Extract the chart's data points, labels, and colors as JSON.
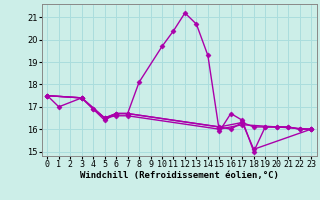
{
  "background_color": "#cceee8",
  "grid_color": "#aadddd",
  "line_color": "#aa00aa",
  "marker": "D",
  "markersize": 2.5,
  "linewidth": 1.0,
  "xlim": [
    -0.5,
    23.5
  ],
  "ylim": [
    14.8,
    21.6
  ],
  "yticks": [
    15,
    16,
    17,
    18,
    19,
    20,
    21
  ],
  "xlabel": "Windchill (Refroidissement éolien,°C)",
  "xlabel_fontsize": 6.5,
  "tick_fontsize": 6.0,
  "series": [
    [
      17.5,
      17.0,
      null,
      17.4,
      16.9,
      16.4,
      16.7,
      16.7,
      18.1,
      null,
      19.7,
      20.4,
      21.2,
      20.7,
      19.3,
      15.9,
      16.7,
      16.4,
      15.0,
      16.1,
      16.1,
      16.1,
      16.0,
      16.0
    ],
    [
      17.5,
      null,
      null,
      17.4,
      16.9,
      16.5,
      16.7,
      16.7,
      null,
      null,
      null,
      null,
      null,
      null,
      null,
      16.1,
      16.0,
      16.3,
      16.1,
      16.1,
      16.1,
      16.1,
      16.0,
      16.0
    ],
    [
      17.5,
      null,
      null,
      17.4,
      null,
      16.5,
      16.7,
      16.7,
      null,
      null,
      null,
      null,
      null,
      null,
      null,
      16.1,
      null,
      16.3,
      15.1,
      null,
      null,
      null,
      null,
      16.0
    ],
    [
      17.5,
      null,
      null,
      17.4,
      null,
      16.5,
      16.6,
      16.6,
      null,
      null,
      null,
      null,
      null,
      null,
      null,
      16.0,
      null,
      16.2,
      null,
      null,
      null,
      null,
      null,
      16.0
    ]
  ]
}
